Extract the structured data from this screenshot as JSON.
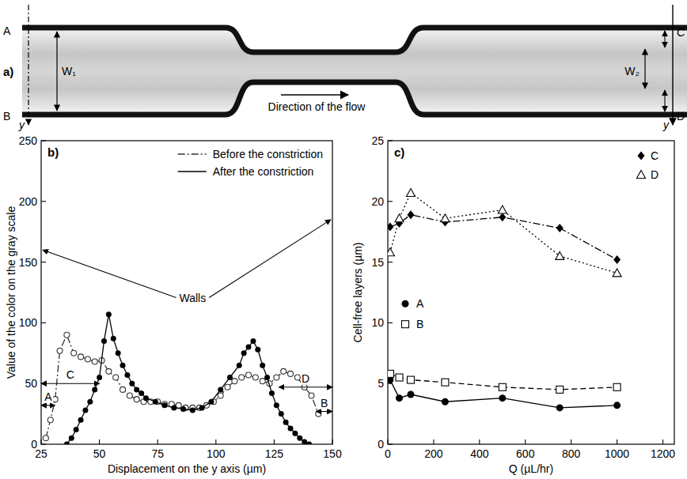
{
  "diagram": {
    "label": "a)",
    "left": {
      "top": "A",
      "bottom": "B",
      "width": "W₁",
      "axis": "y"
    },
    "right": {
      "top": "C",
      "bottom": "D",
      "width": "W₂",
      "axis": "y"
    },
    "flow": "Direction of the flow"
  },
  "chart_data": [
    {
      "type": "line",
      "title": "b)",
      "x_label": "Displacement on the y axis (µm)",
      "y_label": "Value of the color on the gray scale",
      "xlim": [
        25,
        150
      ],
      "xticks": [
        25,
        50,
        75,
        100,
        125,
        150
      ],
      "ylim": [
        0,
        250
      ],
      "yticks": [
        0,
        50,
        100,
        150,
        200,
        250
      ],
      "grid": false,
      "legend": "upper right",
      "series": [
        {
          "name": "Before the constriction",
          "color": "#333333",
          "marker": "circle-open",
          "line_style": "dashdot",
          "x": [
            27,
            29,
            31,
            33,
            36,
            39,
            42,
            45,
            48,
            51,
            54,
            57,
            60,
            63,
            66,
            69,
            72,
            75,
            78,
            81,
            84,
            87,
            90,
            93,
            96,
            99,
            102,
            105,
            108,
            111,
            114,
            117,
            120,
            123,
            126,
            129,
            132,
            135,
            138,
            141,
            144
          ],
          "values": [
            5,
            20,
            37,
            77,
            90,
            75,
            72,
            70,
            68,
            69,
            60,
            55,
            45,
            40,
            37,
            35,
            35,
            35,
            33,
            33,
            32,
            30,
            30,
            30,
            32,
            35,
            40,
            47,
            52,
            55,
            57,
            55,
            52,
            50,
            55,
            60,
            58,
            55,
            47,
            40,
            25
          ]
        },
        {
          "name": "After the constriction",
          "color": "#000000",
          "marker": "circle",
          "line_style": "solid",
          "x": [
            36,
            38,
            40,
            42,
            44,
            46,
            48,
            50,
            52,
            54,
            56,
            58,
            60,
            62,
            64,
            66,
            68,
            70,
            74,
            78,
            82,
            86,
            90,
            94,
            98,
            102,
            106,
            110,
            112,
            114,
            116,
            118,
            120,
            122,
            124,
            126,
            128,
            130,
            132,
            134,
            136,
            138,
            140
          ],
          "values": [
            0,
            5,
            12,
            20,
            28,
            35,
            45,
            55,
            85,
            107,
            87,
            75,
            65,
            57,
            50,
            45,
            42,
            38,
            35,
            32,
            30,
            29,
            28,
            30,
            35,
            45,
            55,
            65,
            75,
            80,
            85,
            78,
            65,
            55,
            42,
            32,
            25,
            18,
            13,
            9,
            5,
            2,
            0
          ]
        }
      ],
      "annotations": [
        {
          "text": "Walls"
        },
        {
          "text": "A",
          "x1": 25,
          "x2": 31,
          "y": 32
        },
        {
          "text": "C",
          "x1": 25,
          "x2": 50,
          "y": 50
        },
        {
          "text": "D",
          "x1": 127,
          "x2": 150,
          "y": 47
        },
        {
          "text": "B",
          "x1": 143,
          "x2": 150,
          "y": 27
        }
      ]
    },
    {
      "type": "line",
      "title": "c)",
      "x_label": "Q (µL/hr)",
      "y_label": "Cell-free layers (µm)",
      "xlim": [
        0,
        1250
      ],
      "xticks": [
        0,
        200,
        400,
        600,
        800,
        1000,
        1200
      ],
      "ylim": [
        0,
        25
      ],
      "yticks": [
        0,
        5,
        10,
        15,
        20,
        25
      ],
      "grid": false,
      "legend": "upper right",
      "x": [
        10,
        50,
        100,
        250,
        500,
        750,
        1000
      ],
      "series": [
        {
          "name": "C",
          "color": "#000000",
          "marker": "diamond",
          "line_style": "dashdot",
          "values": [
            17.9,
            18.2,
            18.9,
            18.3,
            18.7,
            17.8,
            15.2
          ]
        },
        {
          "name": "D",
          "color": "#000000",
          "marker": "triangle-open",
          "line_style": "dotted",
          "values": [
            15.8,
            18.6,
            20.7,
            18.6,
            19.3,
            15.5,
            14.1
          ]
        },
        {
          "name": "A",
          "color": "#000000",
          "marker": "circle",
          "line_style": "solid",
          "values": [
            5.3,
            3.8,
            4.1,
            3.5,
            3.8,
            3.0,
            3.2
          ]
        },
        {
          "name": "B",
          "color": "#000000",
          "marker": "square-open",
          "line_style": "dashed",
          "values": [
            5.8,
            5.5,
            5.3,
            5.1,
            4.7,
            4.5,
            4.7
          ]
        }
      ]
    }
  ]
}
